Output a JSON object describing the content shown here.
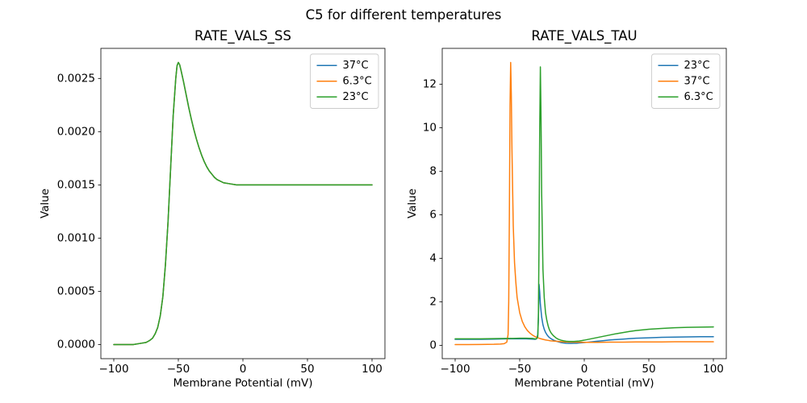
{
  "figure": {
    "suptitle": "C5 for different temperatures",
    "background_color": "#ffffff",
    "text_color": "#000000"
  },
  "chart_data": [
    {
      "type": "line",
      "title": "RATE_VALS_SS",
      "xlabel": "Membrane Potential (mV)",
      "ylabel": "Value",
      "xlim": [
        -110,
        110
      ],
      "ylim": [
        -0.0001325,
        0.0027825
      ],
      "xticks": [
        -100,
        -50,
        0,
        50,
        100
      ],
      "xtick_labels": [
        "−100",
        "−50",
        "0",
        "50",
        "100"
      ],
      "yticks": [
        0,
        0.0005,
        0.001,
        0.0015,
        0.002,
        0.0025
      ],
      "ytick_labels": [
        "0.0000",
        "0.0005",
        "0.0010",
        "0.0015",
        "0.0020",
        "0.0025"
      ],
      "grid": false,
      "legend": {
        "position": "upper right"
      },
      "series": [
        {
          "name": "37°C",
          "color": "#1f77b4",
          "x": [
            -100,
            -95,
            -90,
            -85,
            -80,
            -75,
            -72,
            -70,
            -68,
            -66,
            -64,
            -62,
            -60,
            -58,
            -56,
            -54,
            -52,
            -51,
            -50,
            -49,
            -48,
            -46,
            -44,
            -42,
            -40,
            -38,
            -36,
            -34,
            -32,
            -30,
            -28,
            -26,
            -24,
            -22,
            -20,
            -15,
            -10,
            -5,
            0,
            10,
            20,
            30,
            40,
            50,
            60,
            70,
            80,
            90,
            100
          ],
          "y": [
            0.0,
            0.0,
            0.0,
            0.0,
            1e-05,
            2e-05,
            4e-05,
            6e-05,
            0.0001,
            0.00016,
            0.00027,
            0.00045,
            0.00075,
            0.00115,
            0.00165,
            0.00215,
            0.0025,
            0.00262,
            0.00265,
            0.00263,
            0.00258,
            0.00247,
            0.00235,
            0.00223,
            0.00212,
            0.00202,
            0.00193,
            0.00185,
            0.00178,
            0.00172,
            0.00167,
            0.00163,
            0.0016,
            0.00157,
            0.00155,
            0.00152,
            0.00151,
            0.0015,
            0.0015,
            0.0015,
            0.0015,
            0.0015,
            0.0015,
            0.0015,
            0.0015,
            0.0015,
            0.0015,
            0.0015,
            0.0015
          ]
        },
        {
          "name": "6.3°C",
          "color": "#ff7f0e",
          "x": [
            -100,
            -95,
            -90,
            -85,
            -80,
            -75,
            -72,
            -70,
            -68,
            -66,
            -64,
            -62,
            -60,
            -58,
            -56,
            -54,
            -52,
            -51,
            -50,
            -49,
            -48,
            -46,
            -44,
            -42,
            -40,
            -38,
            -36,
            -34,
            -32,
            -30,
            -28,
            -26,
            -24,
            -22,
            -20,
            -15,
            -10,
            -5,
            0,
            10,
            20,
            30,
            40,
            50,
            60,
            70,
            80,
            90,
            100
          ],
          "y": [
            0.0,
            0.0,
            0.0,
            0.0,
            1e-05,
            2e-05,
            4e-05,
            6e-05,
            0.0001,
            0.00016,
            0.00027,
            0.00045,
            0.00075,
            0.00115,
            0.00165,
            0.00215,
            0.0025,
            0.00262,
            0.00265,
            0.00263,
            0.00258,
            0.00247,
            0.00235,
            0.00223,
            0.00212,
            0.00202,
            0.00193,
            0.00185,
            0.00178,
            0.00172,
            0.00167,
            0.00163,
            0.0016,
            0.00157,
            0.00155,
            0.00152,
            0.00151,
            0.0015,
            0.0015,
            0.0015,
            0.0015,
            0.0015,
            0.0015,
            0.0015,
            0.0015,
            0.0015,
            0.0015,
            0.0015,
            0.0015
          ]
        },
        {
          "name": "23°C",
          "color": "#2ca02c",
          "x": [
            -100,
            -95,
            -90,
            -85,
            -80,
            -75,
            -72,
            -70,
            -68,
            -66,
            -64,
            -62,
            -60,
            -58,
            -56,
            -54,
            -52,
            -51,
            -50,
            -49,
            -48,
            -46,
            -44,
            -42,
            -40,
            -38,
            -36,
            -34,
            -32,
            -30,
            -28,
            -26,
            -24,
            -22,
            -20,
            -15,
            -10,
            -5,
            0,
            10,
            20,
            30,
            40,
            50,
            60,
            70,
            80,
            90,
            100
          ],
          "y": [
            0.0,
            0.0,
            0.0,
            0.0,
            1e-05,
            2e-05,
            4e-05,
            6e-05,
            0.0001,
            0.00016,
            0.00027,
            0.00045,
            0.00075,
            0.00115,
            0.00165,
            0.00215,
            0.0025,
            0.00262,
            0.00265,
            0.00263,
            0.00258,
            0.00247,
            0.00235,
            0.00223,
            0.00212,
            0.00202,
            0.00193,
            0.00185,
            0.00178,
            0.00172,
            0.00167,
            0.00163,
            0.0016,
            0.00157,
            0.00155,
            0.00152,
            0.00151,
            0.0015,
            0.0015,
            0.0015,
            0.0015,
            0.0015,
            0.0015,
            0.0015,
            0.0015,
            0.0015,
            0.0015,
            0.0015,
            0.0015
          ]
        }
      ]
    },
    {
      "type": "line",
      "title": "RATE_VALS_TAU",
      "xlabel": "Membrane Potential (mV)",
      "ylabel": "Value",
      "xlim": [
        -110,
        110
      ],
      "ylim": [
        -0.61,
        13.65
      ],
      "xticks": [
        -100,
        -50,
        0,
        50,
        100
      ],
      "xtick_labels": [
        "−100",
        "−50",
        "0",
        "50",
        "100"
      ],
      "yticks": [
        0,
        2,
        4,
        6,
        8,
        10,
        12
      ],
      "ytick_labels": [
        "0",
        "2",
        "4",
        "6",
        "8",
        "10",
        "12"
      ],
      "grid": false,
      "legend": {
        "position": "upper right"
      },
      "series": [
        {
          "name": "23°C",
          "color": "#1f77b4",
          "x": [
            -100,
            -90,
            -80,
            -70,
            -60,
            -55,
            -50,
            -45,
            -40,
            -38,
            -37,
            -36,
            -35.5,
            -35,
            -34.5,
            -34,
            -33,
            -32,
            -31,
            -30,
            -29,
            -28,
            -27,
            -26,
            -25,
            -24,
            -23,
            -22,
            -21,
            -20,
            -18,
            -16,
            -14,
            -12,
            -10,
            -8,
            -6,
            -4,
            -2,
            0,
            5,
            10,
            15,
            20,
            25,
            30,
            35,
            40,
            50,
            60,
            70,
            80,
            90,
            100
          ],
          "y": [
            0.28,
            0.28,
            0.28,
            0.29,
            0.3,
            0.3,
            0.3,
            0.3,
            0.29,
            0.28,
            0.3,
            0.5,
            1.2,
            2.8,
            2.45,
            1.9,
            1.3,
            0.95,
            0.74,
            0.6,
            0.5,
            0.42,
            0.36,
            0.32,
            0.28,
            0.25,
            0.22,
            0.2,
            0.18,
            0.16,
            0.13,
            0.11,
            0.1,
            0.095,
            0.095,
            0.1,
            0.1,
            0.11,
            0.12,
            0.13,
            0.16,
            0.19,
            0.22,
            0.25,
            0.27,
            0.29,
            0.31,
            0.33,
            0.35,
            0.37,
            0.38,
            0.39,
            0.4,
            0.4
          ]
        },
        {
          "name": "37°C",
          "color": "#ff7f0e",
          "x": [
            -100,
            -90,
            -80,
            -70,
            -65,
            -62,
            -60,
            -59,
            -58.5,
            -58,
            -57.5,
            -57,
            -56.5,
            -56,
            -55,
            -54,
            -53,
            -52,
            -50,
            -48,
            -46,
            -44,
            -42,
            -40,
            -38,
            -36,
            -34,
            -32,
            -30,
            -28,
            -26,
            -24,
            -22,
            -20,
            -15,
            -10,
            -5,
            0,
            10,
            20,
            30,
            40,
            50,
            60,
            70,
            80,
            90,
            100
          ],
          "y": [
            0.04,
            0.04,
            0.045,
            0.05,
            0.06,
            0.08,
            0.15,
            0.5,
            2.0,
            6.0,
            11.0,
            13.0,
            11.5,
            9.0,
            5.5,
            3.8,
            2.9,
            2.2,
            1.5,
            1.1,
            0.85,
            0.68,
            0.56,
            0.47,
            0.4,
            0.35,
            0.31,
            0.28,
            0.25,
            0.23,
            0.21,
            0.2,
            0.19,
            0.18,
            0.16,
            0.15,
            0.15,
            0.14,
            0.14,
            0.15,
            0.15,
            0.16,
            0.16,
            0.16,
            0.17,
            0.17,
            0.17,
            0.17
          ]
        },
        {
          "name": "6.3°C",
          "color": "#2ca02c",
          "x": [
            -100,
            -90,
            -80,
            -70,
            -60,
            -55,
            -50,
            -45,
            -40,
            -38,
            -37,
            -36,
            -35.5,
            -35,
            -34.5,
            -34,
            -33.5,
            -33,
            -32,
            -31,
            -30,
            -29,
            -28,
            -27,
            -26,
            -25,
            -24,
            -23,
            -22,
            -21,
            -20,
            -18,
            -16,
            -14,
            -12,
            -10,
            -8,
            -6,
            -4,
            -2,
            0,
            5,
            10,
            15,
            20,
            25,
            30,
            35,
            40,
            50,
            60,
            70,
            80,
            90,
            100
          ],
          "y": [
            0.3,
            0.3,
            0.3,
            0.31,
            0.32,
            0.32,
            0.33,
            0.33,
            0.32,
            0.3,
            0.3,
            0.4,
            1.5,
            5.0,
            10.0,
            12.8,
            10.5,
            7.0,
            3.5,
            2.2,
            1.5,
            1.15,
            0.9,
            0.72,
            0.6,
            0.52,
            0.45,
            0.4,
            0.35,
            0.31,
            0.28,
            0.24,
            0.21,
            0.19,
            0.18,
            0.18,
            0.18,
            0.19,
            0.2,
            0.22,
            0.24,
            0.3,
            0.36,
            0.42,
            0.48,
            0.54,
            0.59,
            0.64,
            0.68,
            0.74,
            0.78,
            0.81,
            0.83,
            0.84,
            0.85
          ]
        }
      ]
    }
  ]
}
